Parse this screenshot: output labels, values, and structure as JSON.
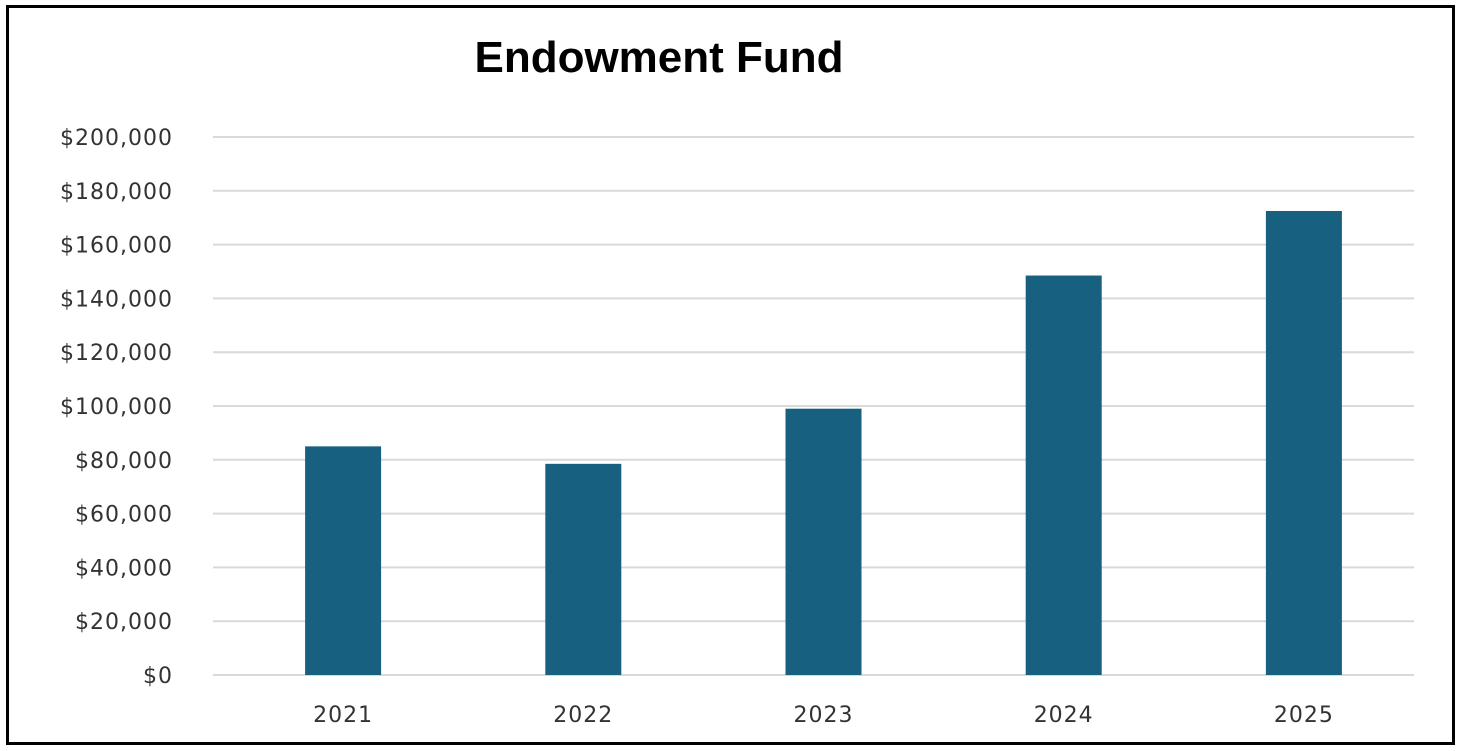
{
  "chart_data": {
    "type": "bar",
    "title": "Endowment Fund",
    "xlabel": "",
    "ylabel": "",
    "categories": [
      "2021",
      "2022",
      "2023",
      "2024",
      "2025"
    ],
    "values": [
      85000,
      78500,
      99000,
      148500,
      172500
    ],
    "ylim": [
      0,
      200000
    ],
    "y_ticks": [
      "$0",
      "$20,000",
      "$40,000",
      "$60,000",
      "$80,000",
      "$100,000",
      "$120,000",
      "$140,000",
      "$160,000",
      "$180,000",
      "$200,000"
    ],
    "grid": true,
    "legend": "none",
    "bar_color": "#17607f",
    "grid_color": "#d9d9d9"
  }
}
